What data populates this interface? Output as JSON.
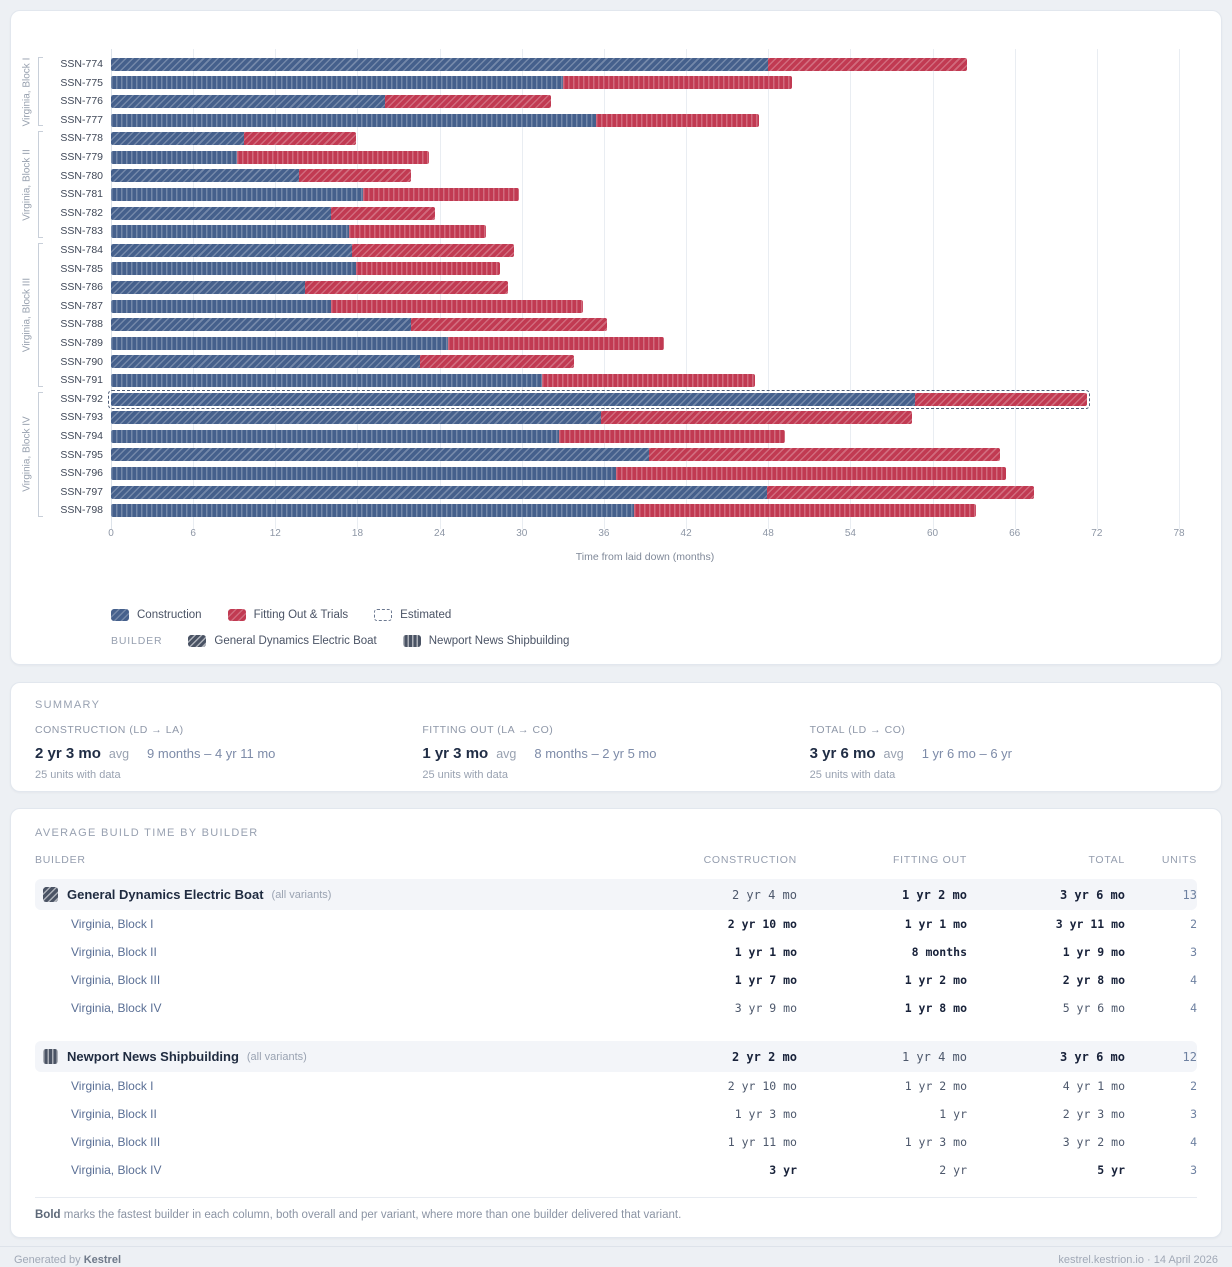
{
  "colors": {
    "construction": "#45608C",
    "fitting_out": "#C13A52",
    "background": "#EDF0F4",
    "grid": "#E9EDF2"
  },
  "chart_data": {
    "type": "bar",
    "orientation": "horizontal",
    "stacked": true,
    "title": "",
    "xlabel": "Time from laid down (months)",
    "xlim": [
      0,
      78
    ],
    "x_ticks": [
      0,
      6,
      12,
      18,
      24,
      30,
      36,
      42,
      48,
      54,
      60,
      66,
      72,
      78
    ],
    "grid": true,
    "legend_position": "bottom",
    "blocks": [
      "Virginia, Block I",
      "Virginia, Block II",
      "Virginia, Block III",
      "Virginia, Block IV"
    ],
    "series_labels": [
      "Construction",
      "Fitting Out & Trials"
    ],
    "units": [
      {
        "name": "SSN-774",
        "block": 0,
        "builder": "gdeb",
        "construction": 48.0,
        "fitting": 14.5,
        "estimated": false
      },
      {
        "name": "SSN-775",
        "block": 0,
        "builder": "nns",
        "construction": 33.0,
        "fitting": 16.7,
        "estimated": false
      },
      {
        "name": "SSN-776",
        "block": 0,
        "builder": "gdeb",
        "construction": 20.0,
        "fitting": 12.1,
        "estimated": false
      },
      {
        "name": "SSN-777",
        "block": 0,
        "builder": "nns",
        "construction": 35.4,
        "fitting": 11.9,
        "estimated": false
      },
      {
        "name": "SSN-778",
        "block": 1,
        "builder": "gdeb",
        "construction": 9.7,
        "fitting": 8.2,
        "estimated": false
      },
      {
        "name": "SSN-779",
        "block": 1,
        "builder": "nns",
        "construction": 9.2,
        "fitting": 14.0,
        "estimated": false
      },
      {
        "name": "SSN-780",
        "block": 1,
        "builder": "gdeb",
        "construction": 13.7,
        "fitting": 8.2,
        "estimated": false
      },
      {
        "name": "SSN-781",
        "block": 1,
        "builder": "nns",
        "construction": 18.4,
        "fitting": 11.4,
        "estimated": false
      },
      {
        "name": "SSN-782",
        "block": 1,
        "builder": "gdeb",
        "construction": 16.1,
        "fitting": 7.6,
        "estimated": false
      },
      {
        "name": "SSN-783",
        "block": 1,
        "builder": "nns",
        "construction": 17.4,
        "fitting": 10.0,
        "estimated": false
      },
      {
        "name": "SSN-784",
        "block": 2,
        "builder": "gdeb",
        "construction": 17.6,
        "fitting": 11.8,
        "estimated": false
      },
      {
        "name": "SSN-785",
        "block": 2,
        "builder": "nns",
        "construction": 17.9,
        "fitting": 10.5,
        "estimated": false
      },
      {
        "name": "SSN-786",
        "block": 2,
        "builder": "gdeb",
        "construction": 14.2,
        "fitting": 14.8,
        "estimated": false
      },
      {
        "name": "SSN-787",
        "block": 2,
        "builder": "nns",
        "construction": 16.1,
        "fitting": 18.4,
        "estimated": false
      },
      {
        "name": "SSN-788",
        "block": 2,
        "builder": "gdeb",
        "construction": 21.9,
        "fitting": 14.3,
        "estimated": false
      },
      {
        "name": "SSN-789",
        "block": 2,
        "builder": "nns",
        "construction": 24.6,
        "fitting": 15.8,
        "estimated": false
      },
      {
        "name": "SSN-790",
        "block": 2,
        "builder": "gdeb",
        "construction": 22.6,
        "fitting": 11.2,
        "estimated": false
      },
      {
        "name": "SSN-791",
        "block": 2,
        "builder": "nns",
        "construction": 31.5,
        "fitting": 15.5,
        "estimated": false
      },
      {
        "name": "SSN-792",
        "block": 3,
        "builder": "gdeb",
        "construction": 58.7,
        "fitting": 12.6,
        "estimated": true
      },
      {
        "name": "SSN-793",
        "block": 3,
        "builder": "gdeb",
        "construction": 35.8,
        "fitting": 22.7,
        "estimated": false
      },
      {
        "name": "SSN-794",
        "block": 3,
        "builder": "nns",
        "construction": 32.7,
        "fitting": 16.5,
        "estimated": false
      },
      {
        "name": "SSN-795",
        "block": 3,
        "builder": "gdeb",
        "construction": 39.3,
        "fitting": 25.6,
        "estimated": false
      },
      {
        "name": "SSN-796",
        "block": 3,
        "builder": "nns",
        "construction": 36.9,
        "fitting": 28.5,
        "estimated": false
      },
      {
        "name": "SSN-797",
        "block": 3,
        "builder": "gdeb",
        "construction": 47.9,
        "fitting": 19.5,
        "estimated": false
      },
      {
        "name": "SSN-798",
        "block": 3,
        "builder": "nns",
        "construction": 38.2,
        "fitting": 25.0,
        "estimated": false
      }
    ]
  },
  "legend": {
    "construction": "Construction",
    "fitting_out": "Fitting Out & Trials",
    "estimated": "Estimated",
    "builder_label": "BUILDER",
    "gdeb": "General Dynamics Electric Boat",
    "nns": "Newport News Shipbuilding"
  },
  "summary": {
    "section_label": "SUMMARY",
    "cards": [
      {
        "label": "CONSTRUCTION (LD → LA)",
        "avg": "2 yr 3 mo",
        "avg_suffix": "avg",
        "range": "9 months – 4 yr 11 mo",
        "note": "25 units with data"
      },
      {
        "label": "FITTING OUT (LA → CO)",
        "avg": "1 yr 3 mo",
        "avg_suffix": "avg",
        "range": "8 months – 2 yr 5 mo",
        "note": "25 units with data"
      },
      {
        "label": "TOTAL (LD → CO)",
        "avg": "3 yr 6 mo",
        "avg_suffix": "avg",
        "range": "1 yr 6 mo – 6 yr",
        "note": "25 units with data"
      }
    ]
  },
  "builder_table": {
    "section_label": "AVERAGE BUILD TIME BY BUILDER",
    "columns": [
      "BUILDER",
      "CONSTRUCTION",
      "FITTING OUT",
      "TOTAL",
      "UNITS"
    ],
    "groups": [
      {
        "builder": "General Dynamics Electric Boat",
        "builder_suffix": "(all variants)",
        "hatch": "diagonal",
        "construction": {
          "text": "2 yr 4 mo",
          "bold": false
        },
        "fitting": {
          "text": "1 yr 2 mo",
          "bold": true
        },
        "total": {
          "text": "3 yr 6 mo",
          "bold": true
        },
        "units": "13",
        "rows": [
          {
            "variant": "Virginia, Block I",
            "construction": {
              "text": "2 yr 10 mo",
              "bold": true
            },
            "fitting": {
              "text": "1 yr 1 mo",
              "bold": true
            },
            "total": {
              "text": "3 yr 11 mo",
              "bold": true
            },
            "units": "2"
          },
          {
            "variant": "Virginia, Block II",
            "construction": {
              "text": "1 yr 1 mo",
              "bold": true
            },
            "fitting": {
              "text": "8 months",
              "bold": true
            },
            "total": {
              "text": "1 yr 9 mo",
              "bold": true
            },
            "units": "3"
          },
          {
            "variant": "Virginia, Block III",
            "construction": {
              "text": "1 yr 7 mo",
              "bold": true
            },
            "fitting": {
              "text": "1 yr 2 mo",
              "bold": true
            },
            "total": {
              "text": "2 yr 8 mo",
              "bold": true
            },
            "units": "4"
          },
          {
            "variant": "Virginia, Block IV",
            "construction": {
              "text": "3 yr 9 mo",
              "bold": false
            },
            "fitting": {
              "text": "1 yr 8 mo",
              "bold": true
            },
            "total": {
              "text": "5 yr 6 mo",
              "bold": false
            },
            "units": "4"
          }
        ]
      },
      {
        "builder": "Newport News Shipbuilding",
        "builder_suffix": "(all variants)",
        "hatch": "vertical",
        "construction": {
          "text": "2 yr 2 mo",
          "bold": true
        },
        "fitting": {
          "text": "1 yr 4 mo",
          "bold": false
        },
        "total": {
          "text": "3 yr 6 mo",
          "bold": true
        },
        "units": "12",
        "rows": [
          {
            "variant": "Virginia, Block I",
            "construction": {
              "text": "2 yr 10 mo",
              "bold": false
            },
            "fitting": {
              "text": "1 yr 2 mo",
              "bold": false
            },
            "total": {
              "text": "4 yr 1 mo",
              "bold": false
            },
            "units": "2"
          },
          {
            "variant": "Virginia, Block II",
            "construction": {
              "text": "1 yr 3 mo",
              "bold": false
            },
            "fitting": {
              "text": "1 yr",
              "bold": false
            },
            "total": {
              "text": "2 yr 3 mo",
              "bold": false
            },
            "units": "3"
          },
          {
            "variant": "Virginia, Block III",
            "construction": {
              "text": "1 yr 11 mo",
              "bold": false
            },
            "fitting": {
              "text": "1 yr 3 mo",
              "bold": false
            },
            "total": {
              "text": "3 yr 2 mo",
              "bold": false
            },
            "units": "4"
          },
          {
            "variant": "Virginia, Block IV",
            "construction": {
              "text": "3 yr",
              "bold": true
            },
            "fitting": {
              "text": "2 yr",
              "bold": false
            },
            "total": {
              "text": "5 yr",
              "bold": true
            },
            "units": "3"
          }
        ]
      }
    ],
    "footnote_bold": "Bold",
    "footnote_rest": " marks the fastest builder in each column, both overall and per variant, where more than one builder delivered that variant."
  },
  "footer": {
    "left_prefix": "Generated by ",
    "left_brand": "Kestrel",
    "right": "kestrel.kestrion.io · 14 April 2026"
  }
}
